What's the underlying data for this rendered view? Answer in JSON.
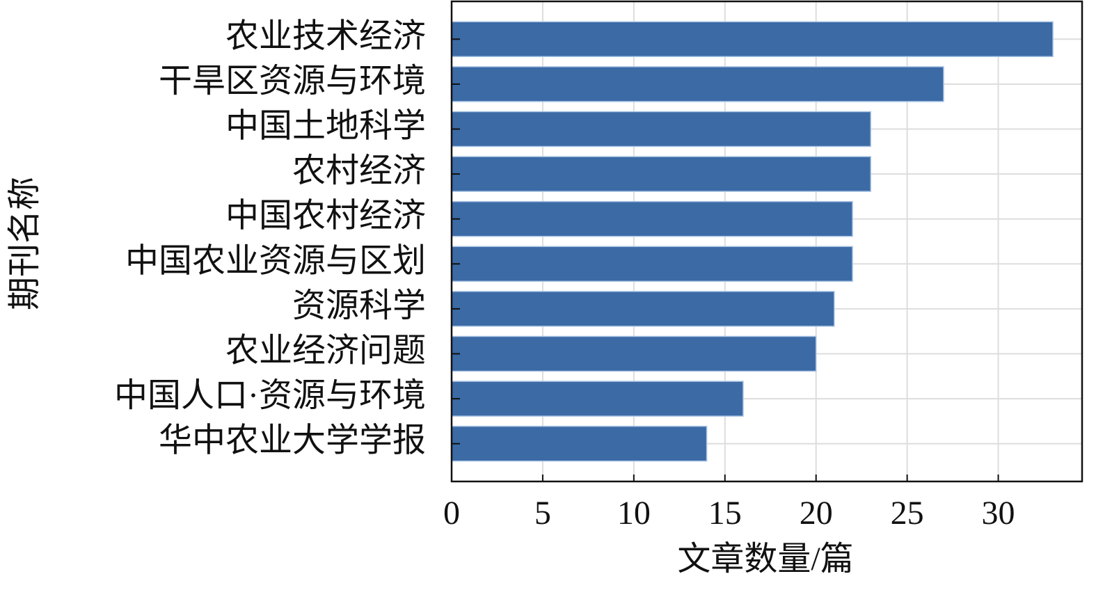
{
  "chart_data": {
    "type": "bar",
    "orientation": "horizontal",
    "x_label": "文章数量/篇",
    "y_label": "期刊名称",
    "categories": [
      "农业技术经济",
      "干旱区资源与环境",
      "中国土地科学",
      "农村经济",
      "中国农村经济",
      "中国农业资源与区划",
      "资源科学",
      "农业经济问题",
      "中国人口·资源与环境",
      "华中农业大学学报"
    ],
    "values": [
      33,
      27,
      23,
      23,
      22,
      22,
      21,
      20,
      16,
      14
    ],
    "color": "#3b6aa5",
    "xlim": [
      0,
      34.6
    ],
    "xticks": [
      0,
      5,
      10,
      15,
      20,
      25,
      30
    ],
    "grid": true
  }
}
